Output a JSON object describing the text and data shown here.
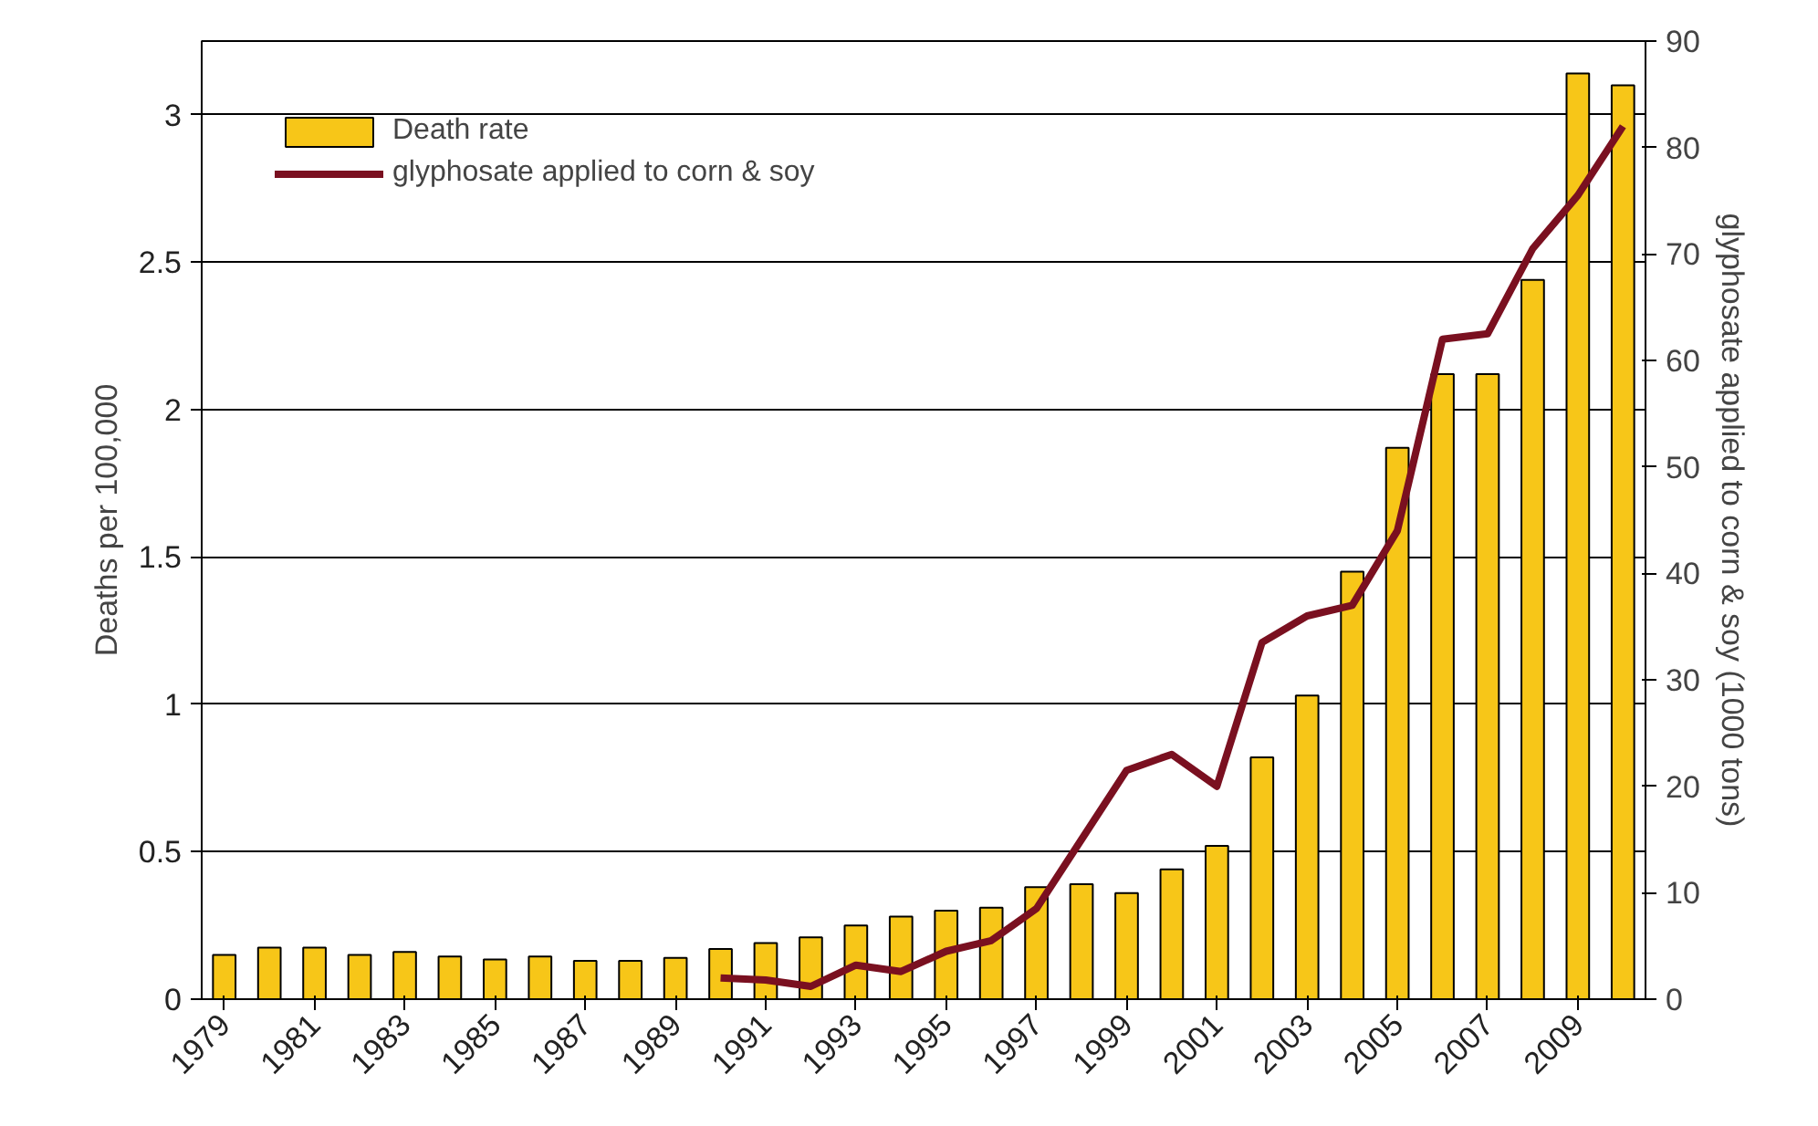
{
  "chart_data": {
    "type": "bar",
    "categories": [
      "1979",
      null,
      "1981",
      null,
      "1983",
      null,
      "1985",
      null,
      "1987",
      null,
      "1989",
      null,
      "1991",
      null,
      "1993",
      null,
      "1995",
      null,
      "1997",
      null,
      "1999",
      null,
      "2001",
      null,
      "2003",
      null,
      "2005",
      null,
      "2007",
      null,
      "2009",
      null
    ],
    "series": [
      {
        "name": "Death rate",
        "color": "#f7c618",
        "values": [
          0.15,
          0.175,
          0.175,
          0.15,
          0.16,
          0.145,
          0.135,
          0.145,
          0.13,
          0.13,
          0.14,
          0.17,
          0.19,
          0.21,
          0.25,
          0.28,
          0.3,
          0.31,
          0.38,
          0.39,
          0.36,
          0.44,
          0.52,
          0.82,
          1.03,
          1.45,
          1.87,
          2.12,
          2.12,
          2.44,
          3.14,
          3.1
        ]
      },
      {
        "name": "glyphosate applied to corn & soy",
        "type": "line",
        "axis": "y2",
        "color": "#7a1020",
        "values": [
          null,
          null,
          null,
          null,
          null,
          null,
          null,
          null,
          null,
          null,
          null,
          2,
          1.8,
          1.2,
          3.2,
          2.6,
          4.5,
          5.5,
          8.5,
          15,
          21.5,
          23,
          20,
          33.5,
          36,
          37,
          44,
          62,
          62.5,
          70.5,
          75.5,
          82
        ]
      }
    ],
    "ylabel": "Deaths per 100,000",
    "y2label": "glyphosate applied to corn & soy (1000 tons)",
    "ylim": [
      0,
      3.25
    ],
    "yticks": [
      0,
      0.5,
      1,
      1.5,
      2,
      2.5,
      3
    ],
    "y2lim": [
      0,
      90
    ],
    "y2ticks": [
      0,
      10,
      20,
      30,
      40,
      50,
      60,
      70,
      80,
      90
    ],
    "grid": "y",
    "legend": "top left"
  }
}
